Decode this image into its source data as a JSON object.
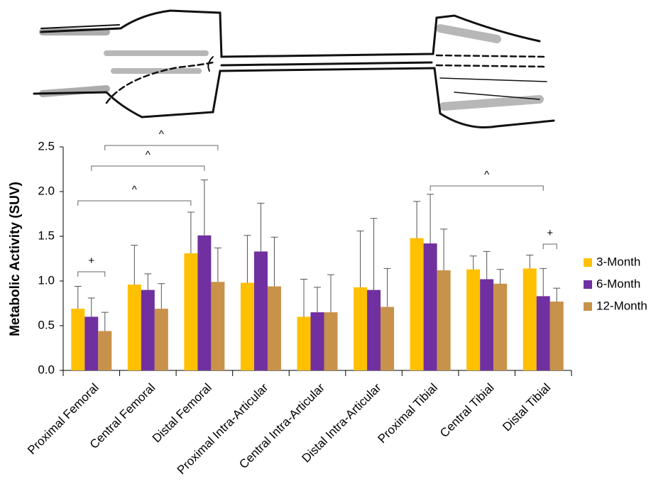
{
  "chart_data": {
    "type": "bar",
    "y_label": "Metabolic Activity (SUV)",
    "categories": [
      "Proximal Femoral",
      "Central Femoral",
      "Distal Femoral",
      "Proximal Intra-Articular",
      "Central Intra-Articular",
      "Distal Intra-Articular",
      "Proximal Tibial",
      "Central Tibial",
      "Distal Tibial"
    ],
    "series": [
      {
        "name": "3-Month",
        "color": "#ffc000",
        "values": [
          0.69,
          0.96,
          1.31,
          0.98,
          0.6,
          0.93,
          1.48,
          1.13,
          1.14
        ],
        "errors": [
          0.25,
          0.44,
          0.46,
          0.53,
          0.42,
          0.63,
          0.41,
          0.15,
          0.15
        ]
      },
      {
        "name": "6-Month",
        "color": "#7030a0",
        "values": [
          0.6,
          0.9,
          1.51,
          1.33,
          0.65,
          0.9,
          1.42,
          1.02,
          0.83
        ],
        "errors": [
          0.21,
          0.18,
          0.62,
          0.54,
          0.28,
          0.8,
          0.55,
          0.31,
          0.31
        ]
      },
      {
        "name": "12-Month",
        "color": "#c8924a",
        "values": [
          0.44,
          0.69,
          0.99,
          0.94,
          0.65,
          0.71,
          1.12,
          0.97,
          0.77
        ],
        "errors": [
          0.21,
          0.28,
          0.38,
          0.55,
          0.42,
          0.43,
          0.46,
          0.16,
          0.15
        ]
      }
    ],
    "ylim": [
      0,
      2.5
    ],
    "yticks": [
      {
        "value": 0,
        "label": "0.0"
      },
      0.5,
      {
        "value": 1,
        "label": "1.0"
      },
      1.5,
      {
        "value": 2,
        "label": "2.0"
      },
      2.5
    ],
    "grid": false,
    "legend": "right",
    "annotations": [
      {
        "text": "+",
        "from_series": "3-Month",
        "from": "Proximal Femoral",
        "to_series": "12-Month",
        "to": "Proximal Femoral"
      },
      {
        "text": "^",
        "from_series": "3-Month",
        "from": "Proximal Femoral",
        "to_series": "3-Month",
        "to": "Distal Femoral"
      },
      {
        "text": "^",
        "from_series": "6-Month",
        "from": "Proximal Femoral",
        "to_series": "6-Month",
        "to": "Distal Femoral"
      },
      {
        "text": "^",
        "from_series": "12-Month",
        "from": "Proximal Femoral",
        "to_series": "12-Month",
        "to": "Distal Femoral"
      },
      {
        "text": "^",
        "from_series": "6-Month",
        "from": "Proximal Tibial",
        "to_series": "6-Month",
        "to": "Distal Tibial"
      },
      {
        "text": "+",
        "from_series": "6-Month",
        "from": "Distal Tibial",
        "to_series": "12-Month",
        "to": "Distal Tibial"
      }
    ]
  }
}
